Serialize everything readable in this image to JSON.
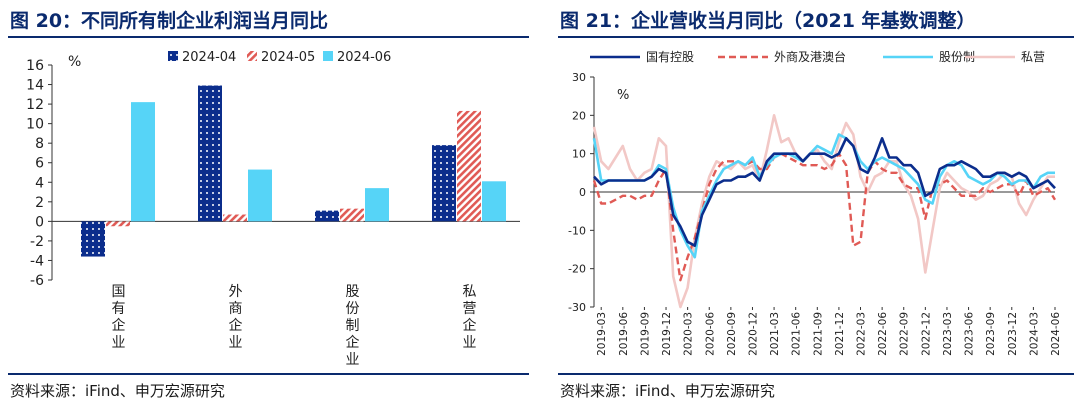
{
  "left_panel": {
    "title": "图 20：不同所有制企业利润当月同比",
    "source": "资料来源：iFind、申万宏源研究",
    "unit_label": "%"
  },
  "right_panel": {
    "title": "图 21：企业营收当月同比（2021 年基数调整）",
    "source": "资料来源：iFind、申万宏源研究",
    "unit_label": "%"
  },
  "colors": {
    "navy": "#0b2d8c",
    "red": "#e05a55",
    "cyan": "#56d4f7",
    "pink": "#f2c8c6",
    "title_blue": "#0a2a6e"
  },
  "chart_data": [
    {
      "type": "bar",
      "title": "图 20：不同所有制企业利润当月同比",
      "ylabel": "%",
      "ylim": [
        -6,
        16
      ],
      "yticks": [
        -6,
        -4,
        -2,
        0,
        2,
        4,
        6,
        8,
        10,
        12,
        14,
        16
      ],
      "categories": [
        "国有企业",
        "外商企业",
        "股份制企业",
        "私营企业"
      ],
      "series": [
        {
          "name": "2024-04",
          "values": [
            -3.6,
            13.9,
            1.1,
            7.8
          ]
        },
        {
          "name": "2024-05",
          "values": [
            -0.5,
            0.7,
            1.3,
            11.3
          ]
        },
        {
          "name": "2024-06",
          "values": [
            12.2,
            5.3,
            3.4,
            4.1
          ]
        }
      ],
      "legend": "top"
    },
    {
      "type": "line",
      "title": "图 21：企业营收当月同比（2021 年基数调整）",
      "ylabel": "%",
      "ylim": [
        -30,
        30
      ],
      "yticks": [
        -30,
        -20,
        -10,
        0,
        10,
        20,
        30
      ],
      "x_tick_labels": [
        "2019-03",
        "2019-06",
        "2019-09",
        "2019-12",
        "2020-03",
        "2020-06",
        "2020-09",
        "2020-12",
        "2021-03",
        "2021-06",
        "2021-09",
        "2021-12",
        "2022-03",
        "2022-06",
        "2022-09",
        "2022-12",
        "2023-03",
        "2023-06",
        "2023-09",
        "2023-12",
        "2024-03",
        "2024-06"
      ],
      "x": [
        "2019-02",
        "2019-03",
        "2019-04",
        "2019-05",
        "2019-06",
        "2019-07",
        "2019-08",
        "2019-09",
        "2019-10",
        "2019-11",
        "2019-12",
        "2020-01",
        "2020-02",
        "2020-03",
        "2020-04",
        "2020-05",
        "2020-06",
        "2020-07",
        "2020-08",
        "2020-09",
        "2020-10",
        "2020-11",
        "2020-12",
        "2021-01",
        "2021-02",
        "2021-03",
        "2021-04",
        "2021-05",
        "2021-06",
        "2021-07",
        "2021-08",
        "2021-09",
        "2021-10",
        "2021-11",
        "2021-12",
        "2022-01",
        "2022-02",
        "2022-03",
        "2022-04",
        "2022-05",
        "2022-06",
        "2022-07",
        "2022-08",
        "2022-09",
        "2022-10",
        "2022-11",
        "2022-12",
        "2023-01",
        "2023-02",
        "2023-03",
        "2023-04",
        "2023-05",
        "2023-06",
        "2023-07",
        "2023-08",
        "2023-09",
        "2023-10",
        "2023-11",
        "2023-12",
        "2024-01",
        "2024-02",
        "2024-03",
        "2024-04",
        "2024-05",
        "2024-06"
      ],
      "series": [
        {
          "name": "国有控股",
          "style": "solid",
          "values": [
            4,
            2,
            3,
            3,
            3,
            3,
            3,
            3,
            4,
            6,
            5,
            -6,
            -9,
            -13,
            -14,
            -6,
            -2,
            2,
            3,
            3,
            4,
            4,
            5,
            3,
            8,
            10,
            10,
            10,
            10,
            8,
            10,
            10,
            10,
            9,
            10,
            14,
            12,
            6,
            5,
            9,
            14,
            9,
            9,
            7,
            7,
            5,
            -1,
            0,
            6,
            7,
            7,
            8,
            7,
            6,
            4,
            4,
            5,
            5,
            4,
            5,
            4,
            1,
            2,
            3,
            1
          ]
        },
        {
          "name": "外商及港澳台",
          "style": "dashed",
          "values": [
            3,
            -3,
            -3,
            -2,
            -1,
            -1,
            -2,
            -1,
            -1,
            3,
            6,
            -10,
            -23,
            -17,
            -12,
            -5,
            2,
            6,
            8,
            8,
            8,
            7,
            8,
            6,
            6,
            9,
            10,
            9,
            8,
            7,
            7,
            7,
            6,
            7,
            10,
            7,
            -14,
            -13,
            5,
            8,
            6,
            5,
            5,
            2,
            1,
            1,
            -7,
            1,
            2,
            3,
            1,
            -1,
            -1,
            -1,
            1,
            0,
            1,
            2,
            2,
            -1,
            3,
            -1,
            0,
            1,
            -2
          ]
        },
        {
          "name": "股份制",
          "style": "solid",
          "values": [
            14,
            3,
            3,
            3,
            3,
            3,
            3,
            3,
            4,
            7,
            6,
            -4,
            -10,
            -14,
            -17,
            -5,
            -1,
            3,
            6,
            7,
            8,
            7,
            9,
            4,
            7,
            9,
            10,
            10,
            9,
            8,
            10,
            12,
            11,
            10,
            15,
            14,
            12,
            8,
            6,
            8,
            9,
            8,
            7,
            6,
            4,
            2,
            -2,
            -3,
            4,
            7,
            8,
            7,
            4,
            3,
            2,
            3,
            5,
            4,
            2,
            3,
            3,
            1,
            4,
            5,
            5
          ]
        },
        {
          "name": "私营",
          "style": "solid",
          "values": [
            17,
            8,
            6,
            9,
            12,
            6,
            3,
            5,
            6,
            14,
            12,
            -22,
            -30,
            -25,
            -12,
            -3,
            4,
            8,
            7,
            6,
            8,
            6,
            7,
            3,
            11,
            20,
            13,
            14,
            10,
            8,
            10,
            11,
            8,
            6,
            13,
            18,
            15,
            4,
            0,
            4,
            5,
            8,
            8,
            2,
            -1,
            -7,
            -21,
            -10,
            1,
            5,
            3,
            1,
            0,
            -2,
            -1,
            2,
            3,
            5,
            4,
            -3,
            -6,
            -2,
            1,
            4,
            4
          ]
        }
      ],
      "legend": "top"
    }
  ]
}
